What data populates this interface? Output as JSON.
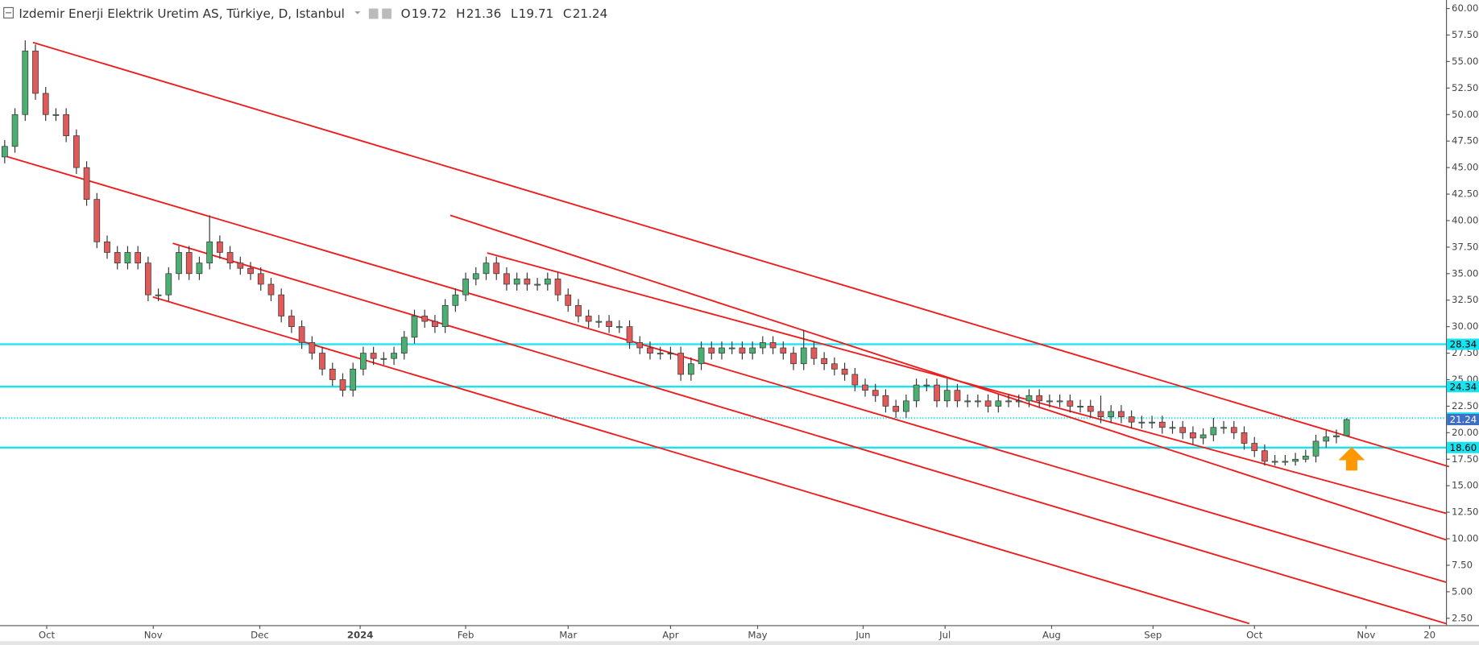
{
  "chart_data": {
    "type": "candlestick",
    "header": {
      "title": "Izdemir Enerji Elektrik Uretim AS, Türkiye, D, Istanbul",
      "ohlc": [
        {
          "label": "O",
          "value": 19.72
        },
        {
          "label": "H",
          "value": 21.36
        },
        {
          "label": "L",
          "value": 19.71
        },
        {
          "label": "C",
          "value": 21.24
        }
      ]
    },
    "up_color": "#4caf72",
    "down_color": "#e05a5a",
    "wick_color": "#333333",
    "open": [
      46,
      47,
      50,
      56,
      52,
      50,
      50,
      48,
      45,
      42,
      38,
      37,
      36,
      37,
      36,
      33,
      33,
      35,
      37,
      35,
      36,
      38,
      37,
      36,
      35.5,
      35,
      34,
      33,
      31,
      30,
      28.5,
      27.5,
      26,
      25,
      24,
      26,
      27.5,
      27,
      27,
      27.5,
      29,
      31,
      30.5,
      30,
      32,
      33,
      34.5,
      35,
      36,
      35,
      34,
      34.5,
      34,
      34,
      34.5,
      33,
      32,
      31,
      30.5,
      30.5,
      30,
      30,
      28.5,
      28,
      27.5,
      27.5,
      27.5,
      25.5,
      26.5,
      28,
      27.5,
      28,
      28,
      27.5,
      28,
      28.5,
      28,
      27.5,
      26.5,
      28,
      27,
      26.5,
      26,
      25.5,
      24.5,
      24,
      23.5,
      22.5,
      22,
      23,
      24.5,
      24.5,
      23,
      24,
      23,
      23,
      23,
      22.5,
      23,
      23,
      23,
      23.5,
      23,
      23,
      23,
      22.5,
      22.5,
      22,
      21.5,
      22,
      21.5,
      21,
      21,
      21,
      20.5,
      20.5,
      20,
      19.5,
      19.8,
      20.5,
      20.5,
      20,
      19,
      18.3,
      17.3,
      17.3,
      17.3,
      17.5,
      17.8,
      19.2,
      19.6,
      19.72
    ],
    "high": [
      47.6,
      50.6,
      57,
      56.6,
      52.6,
      50.6,
      50.6,
      48.6,
      45.6,
      42.6,
      38.6,
      37.6,
      37.6,
      37.6,
      36.6,
      33.6,
      35.6,
      37.6,
      37.6,
      36.6,
      40.5,
      38.6,
      37.6,
      36.6,
      36.1,
      35.6,
      34.6,
      33.6,
      31.6,
      30.6,
      29.1,
      28.1,
      26.6,
      25.6,
      26.6,
      28.1,
      28.1,
      27.6,
      28.1,
      29.6,
      31.6,
      31.6,
      31.1,
      32.6,
      33.6,
      35.1,
      35.6,
      36.6,
      36.6,
      35.6,
      35.1,
      35.1,
      34.6,
      35.1,
      35.1,
      33.6,
      32.6,
      31.6,
      31.1,
      31.1,
      30.6,
      30.6,
      29.1,
      28.6,
      28.1,
      28.1,
      28.1,
      27.1,
      28.6,
      28.6,
      28.6,
      28.6,
      28.6,
      28.6,
      29.1,
      29.1,
      28.6,
      28.1,
      29.7,
      28.6,
      27.6,
      27.1,
      26.6,
      26.1,
      25.1,
      24.6,
      24.1,
      23.1,
      23.6,
      25.1,
      25.1,
      25.1,
      25.1,
      24.6,
      23.6,
      23.6,
      23.6,
      23.6,
      23.6,
      23.6,
      24.1,
      24.1,
      23.6,
      23.6,
      23.6,
      23.1,
      23.1,
      23.5,
      22.6,
      22.6,
      22.1,
      21.6,
      21.6,
      21.6,
      21.1,
      21.1,
      20.6,
      20.4,
      21.4,
      21.1,
      21.1,
      20.6,
      19.6,
      18.9,
      17.9,
      17.9,
      18.1,
      18.4,
      19.8,
      20.2,
      20.3,
      21.36
    ],
    "low": [
      45.4,
      46.4,
      49.4,
      51.4,
      49.4,
      49.4,
      47.4,
      44.4,
      41.4,
      37.4,
      36.4,
      35.4,
      35.4,
      35.4,
      32.4,
      32.4,
      32.4,
      34.4,
      34.4,
      34.4,
      35.4,
      36.4,
      35.4,
      34.9,
      34.4,
      33.4,
      32.4,
      30.4,
      29.4,
      27.9,
      26.9,
      25.4,
      24.4,
      23.4,
      23.4,
      25.4,
      26.4,
      26.4,
      26.4,
      26.9,
      28.4,
      29.9,
      29.4,
      29.4,
      31.4,
      32.4,
      33.9,
      34.4,
      34.4,
      33.4,
      33.4,
      33.4,
      33.4,
      33.4,
      32.4,
      31.4,
      30.4,
      29.9,
      29.9,
      29.4,
      29.4,
      27.9,
      27.4,
      26.9,
      26.9,
      26.9,
      24.9,
      24.9,
      25.9,
      26.9,
      26.9,
      27.4,
      26.9,
      26.9,
      27.4,
      27.4,
      26.9,
      25.9,
      25.9,
      26.4,
      25.9,
      25.4,
      24.9,
      23.9,
      23.4,
      22.9,
      21.9,
      21.4,
      21.4,
      22.4,
      23.9,
      22.4,
      22.4,
      22.4,
      22.4,
      22.4,
      21.9,
      21.9,
      22.4,
      22.4,
      22.4,
      22.4,
      22.4,
      22.4,
      21.9,
      21.9,
      21.4,
      20.9,
      20.9,
      20.9,
      20.4,
      20.4,
      20.4,
      19.9,
      19.9,
      19.4,
      18.9,
      18.9,
      19.2,
      19.9,
      19.4,
      18.4,
      17.7,
      16.9,
      16.9,
      16.9,
      16.9,
      17.2,
      17.2,
      18.6,
      19.0,
      19.71
    ],
    "close": [
      47,
      50,
      56,
      52,
      50,
      50,
      48,
      45,
      42,
      38,
      37,
      36,
      37,
      36,
      33,
      33,
      35,
      37,
      35,
      36,
      38,
      37,
      36,
      35.5,
      35,
      34,
      33,
      31,
      30,
      28.5,
      27.5,
      26,
      25,
      24,
      26,
      27.5,
      27,
      27,
      27.5,
      29,
      31,
      30.5,
      30,
      32,
      33,
      34.5,
      35,
      36,
      35,
      34,
      34.5,
      34,
      34,
      34.5,
      33,
      32,
      31,
      30.5,
      30.5,
      30,
      30,
      28.5,
      28,
      27.5,
      27.5,
      27.5,
      25.5,
      26.5,
      28,
      27.5,
      28,
      28,
      27.5,
      28,
      28.5,
      28,
      27.5,
      26.5,
      28,
      27,
      26.5,
      26,
      25.5,
      24.5,
      24,
      23.5,
      22.5,
      22,
      23,
      24.5,
      24.5,
      23,
      24,
      23,
      23,
      23,
      22.5,
      23,
      23,
      23,
      23.5,
      23,
      23,
      23,
      22.5,
      22.5,
      22,
      21.5,
      22,
      21.5,
      21,
      21,
      21,
      20.5,
      20.5,
      20,
      19.5,
      19.8,
      20.5,
      20.5,
      20,
      19,
      18.3,
      17.3,
      17.3,
      17.3,
      17.5,
      17.8,
      19.2,
      19.6,
      19.72,
      21.24
    ],
    "xlim": [
      -0.46,
      140.7
    ],
    "xticks": [
      {
        "value": 4.1,
        "label": "Oct"
      },
      {
        "value": 14.5,
        "label": "Nov"
      },
      {
        "value": 24.9,
        "label": "Dec"
      },
      {
        "value": 34.7,
        "label": "2024"
      },
      {
        "value": 45,
        "label": "Feb"
      },
      {
        "value": 55,
        "label": "Mar"
      },
      {
        "value": 65,
        "label": "Apr"
      },
      {
        "value": 73.5,
        "label": "May"
      },
      {
        "value": 83.8,
        "label": "Jun"
      },
      {
        "value": 91.8,
        "label": "Jul"
      },
      {
        "value": 102.2,
        "label": "Aug"
      },
      {
        "value": 112.1,
        "label": "Sep"
      },
      {
        "value": 122,
        "label": "Oct"
      },
      {
        "value": 132.9,
        "label": "Nov"
      },
      {
        "value": 139.1,
        "label": "20"
      }
    ],
    "ylim": [
      1.85,
      60.8
    ],
    "yticks": [
      {
        "value": 2.5,
        "label": "2.50"
      },
      {
        "value": 5,
        "label": "5.00"
      },
      {
        "value": 7.5,
        "label": "7.50"
      },
      {
        "value": 10,
        "label": "10.00"
      },
      {
        "value": 12.5,
        "label": "12.50"
      },
      {
        "value": 15,
        "label": "15.00"
      },
      {
        "value": 17.5,
        "label": "17.50"
      },
      {
        "value": 20,
        "label": "20.00"
      },
      {
        "value": 22.5,
        "label": "22.50"
      },
      {
        "value": 25,
        "label": "25.00"
      },
      {
        "value": 27.5,
        "label": "27.50"
      },
      {
        "value": 30,
        "label": "30.00"
      },
      {
        "value": 32.5,
        "label": "32.50"
      },
      {
        "value": 35,
        "label": "35.00"
      },
      {
        "value": 37.5,
        "label": "37.50"
      },
      {
        "value": 40,
        "label": "40.00"
      },
      {
        "value": 42.5,
        "label": "42.50"
      },
      {
        "value": 45,
        "label": "45.00"
      },
      {
        "value": 47.5,
        "label": "47.50"
      },
      {
        "value": 50,
        "label": "50.00"
      },
      {
        "value": 52.5,
        "label": "52.50"
      },
      {
        "value": 55,
        "label": "55.00"
      },
      {
        "value": 57.5,
        "label": "57.50"
      },
      {
        "value": 60,
        "label": "60.00"
      }
    ],
    "levels": [
      {
        "price": 28.34,
        "color": "#18e3f0",
        "style": "solid"
      },
      {
        "price": 24.34,
        "color": "#18e3f0",
        "style": "solid"
      },
      {
        "price": 21.38,
        "color": "#18e3f0",
        "style": "dotted"
      },
      {
        "price": {
          "value": 18.6,
          "label": "18.60"
        },
        "color": "#18e3f0",
        "style": "solid"
      }
    ],
    "last_price_color": "#3f6fc4",
    "trendline_color": "#ee1c1c",
    "trendlines": [
      {
        "x": [
          2.76,
          141
        ],
        "y": [
          56.8,
          16.8
        ]
      },
      {
        "x": [
          0,
          140.7
        ],
        "y": [
          46.1,
          5.9
        ]
      },
      {
        "x": [
          14.46,
          121.5
        ],
        "y": [
          32.8,
          2.0
        ]
      },
      {
        "x": [
          43.5,
          140.7
        ],
        "y": [
          40.5,
          9.9
        ]
      },
      {
        "x": [
          47.1,
          140.7
        ],
        "y": [
          36.95,
          12.4
        ]
      },
      {
        "x": [
          16.4,
          140.7
        ],
        "y": [
          37.86,
          2.0
        ]
      }
    ]
  }
}
